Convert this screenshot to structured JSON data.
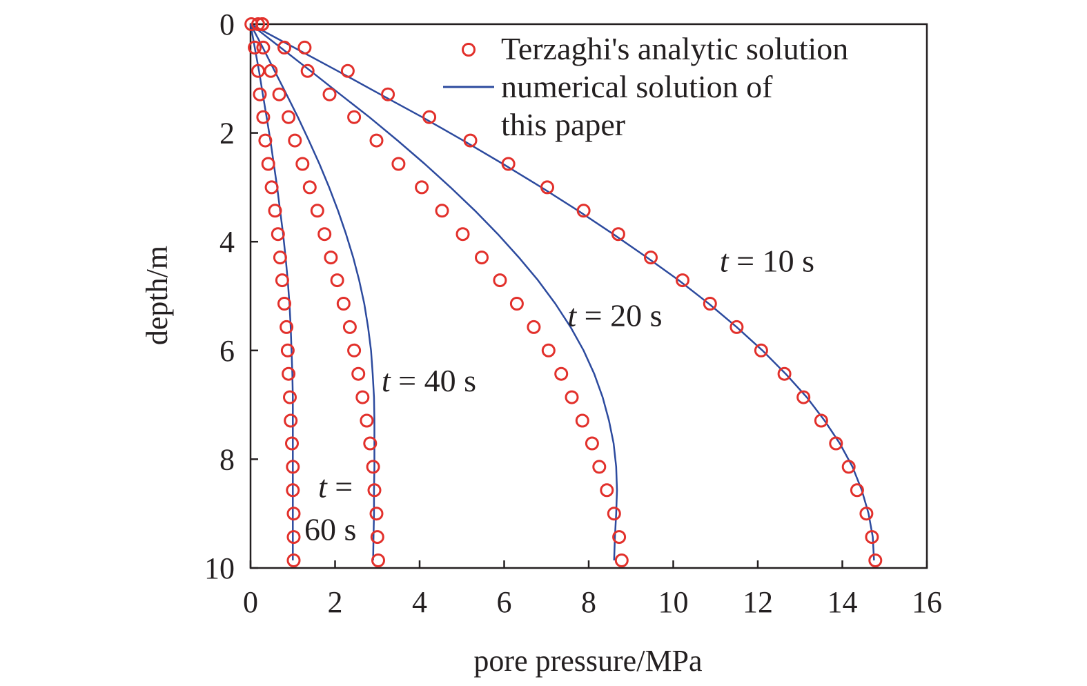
{
  "chart_data": {
    "type": "line",
    "xlabel": "pore pressure/MPa",
    "ylabel": "depth/m",
    "xlim": [
      0,
      16
    ],
    "ylim": [
      0,
      10
    ],
    "y_inverted": true,
    "x_axis_position": "bottom",
    "xticks": [
      "0",
      "2",
      "4",
      "6",
      "8",
      "10",
      "12",
      "14",
      "16"
    ],
    "yticks": [
      "0",
      "2",
      "4",
      "6",
      "8",
      "10"
    ],
    "grid": false,
    "legend_position": "top-right",
    "legend": {
      "markers_label": "Terzaghi's analytic solution",
      "line_label_lines": [
        "numerical solution of",
        "this paper"
      ]
    },
    "colors": {
      "markers": "#e2302b",
      "line": "#2c4a9e",
      "axis": "#231f20"
    },
    "depth": [
      0,
      0.43,
      0.86,
      1.29,
      1.71,
      2.14,
      2.57,
      3.0,
      3.43,
      3.86,
      4.29,
      4.71,
      5.14,
      5.57,
      6.0,
      6.43,
      6.86,
      7.29,
      7.71,
      8.14,
      8.57,
      9.0,
      9.43,
      9.86
    ],
    "series": [
      {
        "name": "t = 10 s",
        "label_parts": [
          "t",
          " = 10 s"
        ],
        "label_anchor": [
          11.1,
          4.55
        ],
        "line": [
          0.0,
          1.03,
          2.06,
          3.07,
          4.06,
          5.03,
          5.97,
          6.88,
          7.75,
          8.58,
          9.38,
          10.13,
          10.84,
          11.5,
          12.11,
          12.66,
          13.16,
          13.58,
          13.94,
          14.24,
          14.46,
          14.62,
          14.72,
          14.75
        ],
        "analytic": [
          0.28,
          1.28,
          2.3,
          3.25,
          4.23,
          5.2,
          6.1,
          7.02,
          7.88,
          8.7,
          9.47,
          10.22,
          10.87,
          11.5,
          12.08,
          12.63,
          13.08,
          13.5,
          13.85,
          14.15,
          14.35,
          14.57,
          14.7,
          14.78
        ]
      },
      {
        "name": "t = 20 s",
        "label_parts": [
          "t",
          " = 20 s"
        ],
        "label_anchor": [
          7.5,
          5.55
        ],
        "line": [
          0.0,
          0.71,
          1.42,
          2.12,
          2.81,
          3.48,
          4.12,
          4.73,
          5.31,
          5.85,
          6.35,
          6.8,
          7.21,
          7.57,
          7.88,
          8.13,
          8.33,
          8.48,
          8.59,
          8.65,
          8.67,
          8.65,
          8.62,
          8.6
        ],
        "analytic": [
          0.28,
          0.8,
          1.35,
          1.87,
          2.45,
          2.98,
          3.5,
          4.05,
          4.53,
          5.02,
          5.47,
          5.9,
          6.3,
          6.7,
          7.05,
          7.35,
          7.6,
          7.85,
          8.08,
          8.25,
          8.43,
          8.6,
          8.72,
          8.78
        ]
      },
      {
        "name": "t = 40 s",
        "label_parts": [
          "t",
          " = 40 s"
        ],
        "label_anchor": [
          3.1,
          6.75
        ],
        "line": [
          0.0,
          0.29,
          0.57,
          0.85,
          1.12,
          1.38,
          1.63,
          1.86,
          2.07,
          2.26,
          2.43,
          2.57,
          2.69,
          2.78,
          2.85,
          2.89,
          2.92,
          2.93,
          2.93,
          2.93,
          2.92,
          2.92,
          2.91,
          2.9
        ],
        "analytic": [
          0.18,
          0.3,
          0.48,
          0.68,
          0.9,
          1.05,
          1.23,
          1.4,
          1.58,
          1.75,
          1.9,
          2.05,
          2.2,
          2.35,
          2.45,
          2.55,
          2.65,
          2.75,
          2.83,
          2.9,
          2.93,
          2.98,
          3.0,
          3.02
        ]
      },
      {
        "name": "t = 60 s",
        "label_parts": [
          "t",
          " =",
          "60 s"
        ],
        "label_anchor": [
          1.6,
          8.7
        ],
        "line": [
          0.0,
          0.1,
          0.2,
          0.29,
          0.38,
          0.47,
          0.55,
          0.63,
          0.7,
          0.77,
          0.83,
          0.88,
          0.92,
          0.95,
          0.97,
          0.99,
          1.0,
          1.0,
          1.0,
          1.0,
          1.0,
          1.0,
          1.0,
          1.0
        ],
        "analytic": [
          0.02,
          0.1,
          0.18,
          0.22,
          0.3,
          0.35,
          0.42,
          0.5,
          0.58,
          0.65,
          0.7,
          0.75,
          0.8,
          0.85,
          0.88,
          0.9,
          0.93,
          0.95,
          0.98,
          1.0,
          1.0,
          1.02,
          1.02,
          1.02
        ]
      }
    ]
  }
}
